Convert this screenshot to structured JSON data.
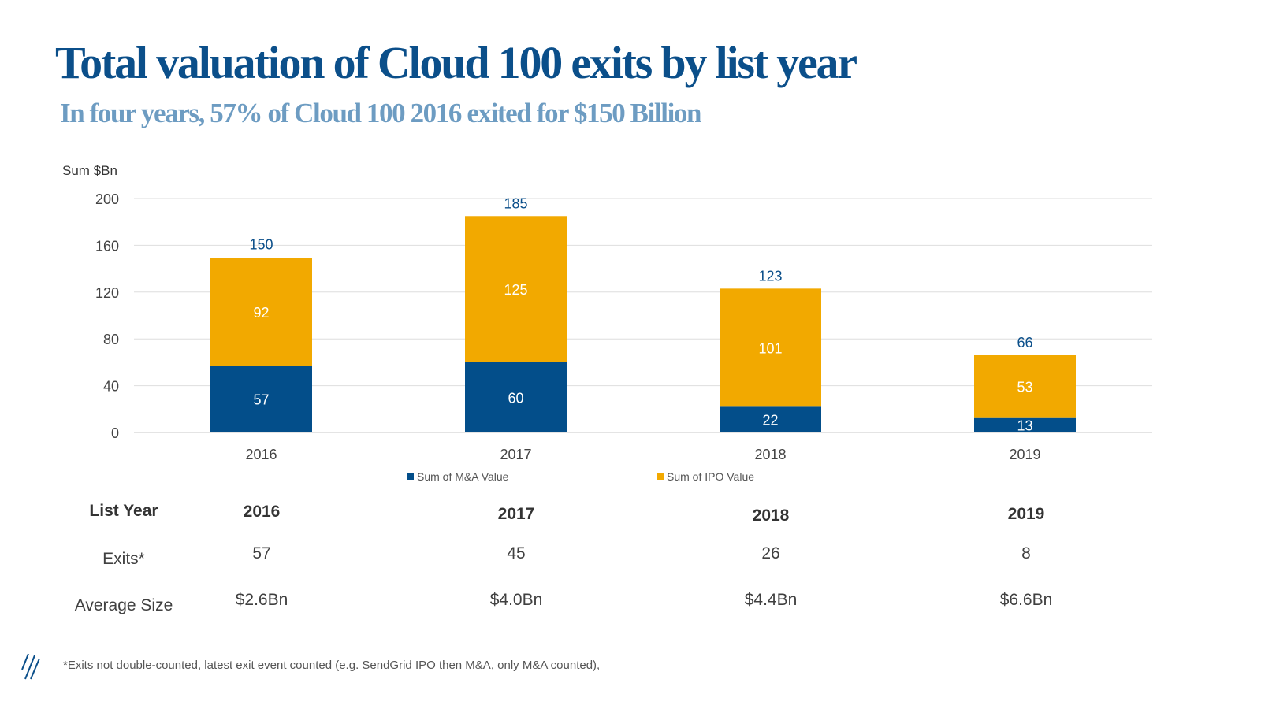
{
  "header": {
    "title": "Total valuation of Cloud 100 exits by list year",
    "subtitle": "In four years, 57% of Cloud 100 2016 exited for $150 Billion"
  },
  "chart_data": {
    "type": "bar",
    "stacked": true,
    "ylabel": "Sum $Bn",
    "ylim": [
      0,
      200
    ],
    "yticks": [
      "0",
      "40",
      "80",
      "120",
      "160",
      "200"
    ],
    "grid": true,
    "legend_position": "bottom",
    "categories": [
      "2016",
      "2017",
      "2018",
      "2019"
    ],
    "series": [
      {
        "name": "Sum of M&A Value",
        "color": "#034e8a",
        "values": [
          57,
          60,
          22,
          13
        ]
      },
      {
        "name": "Sum of IPO Value",
        "color": "#f2a900",
        "values": [
          92,
          125,
          101,
          53
        ]
      }
    ],
    "totals": [
      150,
      185,
      123,
      66
    ]
  },
  "table": {
    "row_labels": [
      "List Year",
      "Exits*",
      "Average Size"
    ],
    "years": [
      "2016",
      "2017",
      "2018",
      "2019"
    ],
    "exits": [
      "57",
      "45",
      "26",
      "8"
    ],
    "avg_size": [
      "$2.6Bn",
      "$4.0Bn",
      "$4.4Bn",
      "$6.6Bn"
    ]
  },
  "footnote": "*Exits not double-counted, latest exit event counted (e.g. SendGrid IPO then M&A, only M&A counted),",
  "logo_icon": "slash-logo-icon"
}
